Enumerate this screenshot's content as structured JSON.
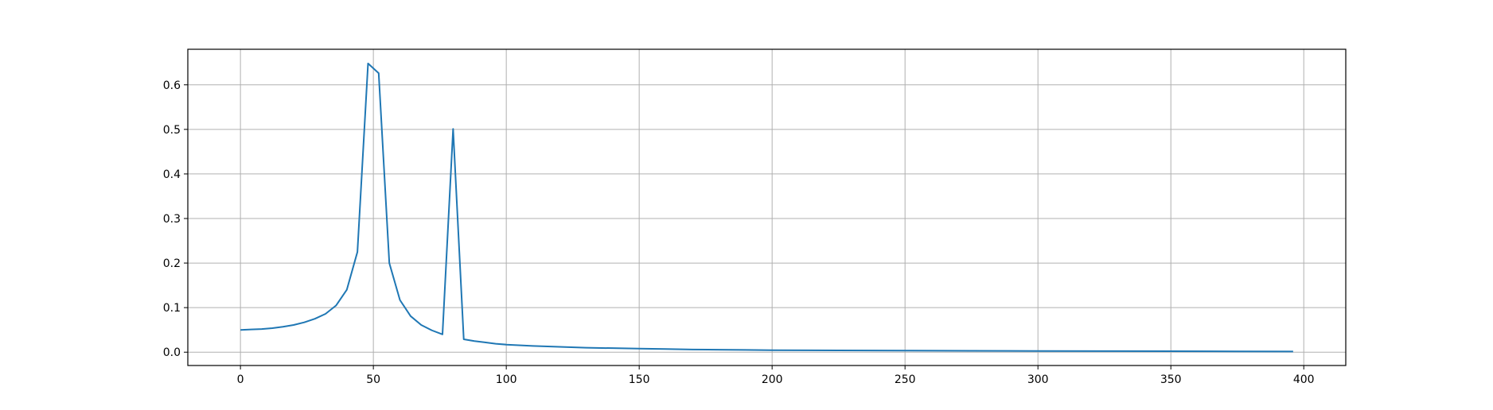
{
  "chart_data": {
    "type": "line",
    "title": "",
    "xlabel": "",
    "ylabel": "",
    "xlim": [
      -19.8,
      415.8
    ],
    "ylim": [
      -0.0299,
      0.6798
    ],
    "xticks": [
      0,
      50,
      100,
      150,
      200,
      250,
      300,
      350,
      400
    ],
    "yticks": [
      0.0,
      0.1,
      0.2,
      0.3,
      0.4,
      0.5,
      0.6
    ],
    "xtick_labels": [
      "0",
      "50",
      "100",
      "150",
      "200",
      "250",
      "300",
      "350",
      "400"
    ],
    "ytick_labels": [
      "0.0",
      "0.1",
      "0.2",
      "0.3",
      "0.4",
      "0.5",
      "0.6"
    ],
    "grid": true,
    "legend": "none",
    "line_color": "#1f77b4",
    "series": [
      {
        "x": [
          0,
          4,
          8,
          12,
          16,
          20,
          24,
          28,
          32,
          36,
          40,
          44,
          48,
          52,
          56,
          60,
          64,
          68,
          72,
          76,
          80,
          84,
          88,
          92,
          96,
          100,
          110,
          120,
          130,
          140,
          150,
          160,
          170,
          180,
          190,
          200,
          225,
          250,
          275,
          300,
          325,
          350,
          375,
          396
        ],
        "y": [
          0.05,
          0.051,
          0.052,
          0.054,
          0.057,
          0.061,
          0.067,
          0.075,
          0.086,
          0.105,
          0.14,
          0.225,
          0.648,
          0.626,
          0.2,
          0.117,
          0.081,
          0.061,
          0.049,
          0.04,
          0.501,
          0.029,
          0.025,
          0.022,
          0.019,
          0.017,
          0.014,
          0.012,
          0.01,
          0.009,
          0.008,
          0.007,
          0.006,
          0.0055,
          0.005,
          0.0045,
          0.004,
          0.0035,
          0.003,
          0.0027,
          0.0024,
          0.0021,
          0.0018,
          0.0016
        ]
      }
    ]
  }
}
